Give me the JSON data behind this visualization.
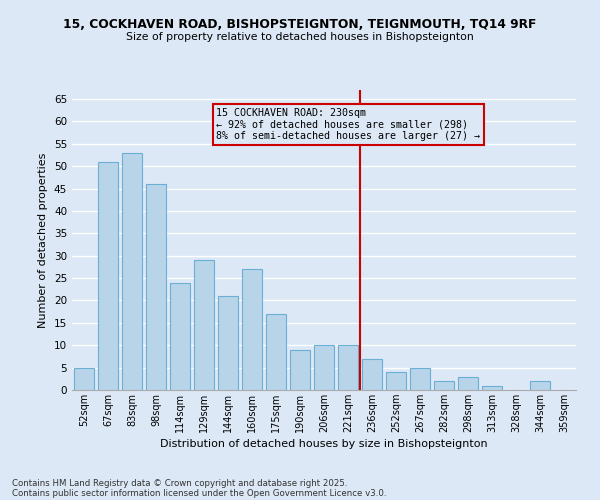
{
  "title1": "15, COCKHAVEN ROAD, BISHOPSTEIGNTON, TEIGNMOUTH, TQ14 9RF",
  "title2": "Size of property relative to detached houses in Bishopsteignton",
  "xlabel": "Distribution of detached houses by size in Bishopsteignton",
  "ylabel": "Number of detached properties",
  "categories": [
    "52sqm",
    "67sqm",
    "83sqm",
    "98sqm",
    "114sqm",
    "129sqm",
    "144sqm",
    "160sqm",
    "175sqm",
    "190sqm",
    "206sqm",
    "221sqm",
    "236sqm",
    "252sqm",
    "267sqm",
    "282sqm",
    "298sqm",
    "313sqm",
    "328sqm",
    "344sqm",
    "359sqm"
  ],
  "values": [
    5,
    51,
    53,
    46,
    24,
    29,
    21,
    27,
    17,
    9,
    10,
    10,
    7,
    4,
    5,
    2,
    3,
    1,
    0,
    2,
    0
  ],
  "bar_color": "#b8d4e8",
  "bar_edge_color": "#6baed6",
  "vline_x_idx": 11.5,
  "vline_color": "#cc0000",
  "annotation_title": "15 COCKHAVEN ROAD: 230sqm",
  "annotation_line1": "← 92% of detached houses are smaller (298)",
  "annotation_line2": "8% of semi-detached houses are larger (27) →",
  "ylim": [
    0,
    67
  ],
  "yticks": [
    0,
    5,
    10,
    15,
    20,
    25,
    30,
    35,
    40,
    45,
    50,
    55,
    60,
    65
  ],
  "bg_color": "#dce8f5",
  "grid_color": "#ffffff",
  "footer_line1": "Contains HM Land Registry data © Crown copyright and database right 2025.",
  "footer_line2": "Contains public sector information licensed under the Open Government Licence v3.0."
}
